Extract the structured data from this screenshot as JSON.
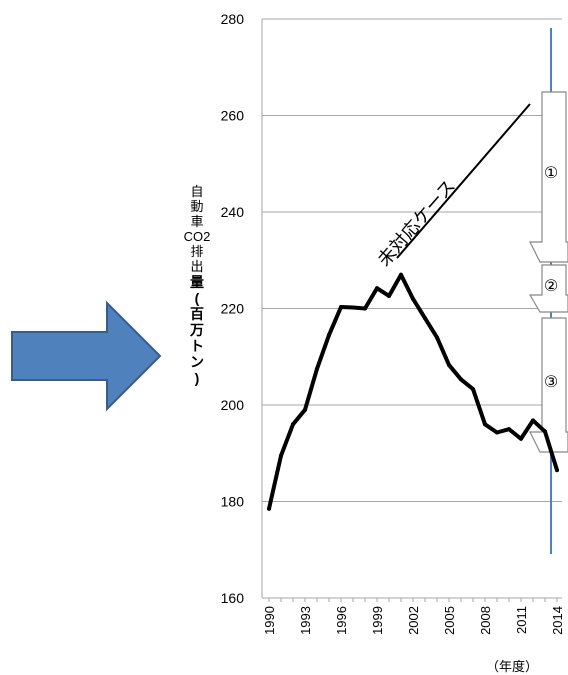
{
  "chart_data": {
    "type": "line",
    "ylim": [
      160,
      280
    ],
    "yticks": [
      "160",
      "180",
      "200",
      "220",
      "240",
      "260",
      "280"
    ],
    "xticks": [
      "1990",
      "1993",
      "1996",
      "1999",
      "2002",
      "2005",
      "2008",
      "2011",
      "2014"
    ],
    "ylabel_lines": [
      "自",
      "動",
      "車",
      "CO2",
      "排",
      "出",
      "量",
      "(",
      "百",
      "万",
      "ト",
      "ン",
      ")"
    ],
    "xlabel": "（年度）",
    "grid": true,
    "x": [
      1990,
      1991,
      1992,
      1993,
      1994,
      1995,
      1996,
      1997,
      1998,
      1999,
      2000,
      2001,
      2002,
      2003,
      2004,
      2005,
      2006,
      2007,
      2008,
      2009,
      2010,
      2011,
      2012,
      2013,
      2014
    ],
    "values": [
      178.5,
      189.5,
      196,
      199,
      207.5,
      214.5,
      220.3,
      220.2,
      220,
      224.2,
      222.6,
      227,
      222,
      218,
      214,
      208.3,
      205.3,
      203.3,
      196,
      194.3,
      195,
      193,
      196.8,
      194.5,
      186.5
    ],
    "annotations": {
      "trend_label": "未対応ケース",
      "arrow_labels": [
        "①",
        "②",
        "③"
      ],
      "target_line_x": 2014
    },
    "colors": {
      "series": "#000000",
      "grid": "#a6a6a6",
      "target_line": "#4f81bd",
      "pointer_fill": "#4f81bd",
      "pointer_stroke": "#385d8a"
    },
    "pointer_icon": "right-arrow-icon"
  }
}
